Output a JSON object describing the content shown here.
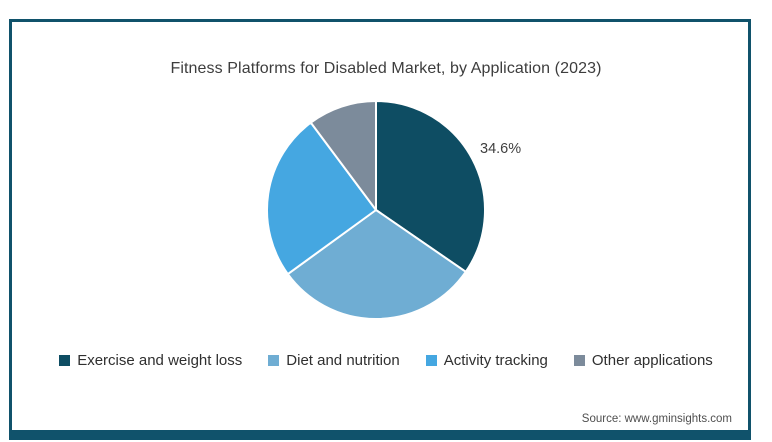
{
  "frame": {
    "border_color": "#10526b"
  },
  "chart_data": {
    "type": "pie",
    "title": "Fitness Platforms for Disabled Market, by Application (2023)",
    "start_angle_deg": 0,
    "direction": "clockwise",
    "legend_position": "bottom",
    "slices": [
      {
        "label": "Exercise and weight loss",
        "value": 34.6,
        "color": "#0e4d63"
      },
      {
        "label": "Diet and nutrition",
        "value": 30.4,
        "color": "#6fadd3"
      },
      {
        "label": "Activity tracking",
        "value": 24.8,
        "color": "#45a7e1"
      },
      {
        "label": "Other applications",
        "value": 10.2,
        "color": "#7c8b9b"
      }
    ],
    "annotations": [
      {
        "text": "34.6%",
        "slice": "Exercise and weight loss",
        "position": "outside-upper-right"
      }
    ]
  },
  "footer": {
    "source": "Source: www.gminsights.com"
  }
}
